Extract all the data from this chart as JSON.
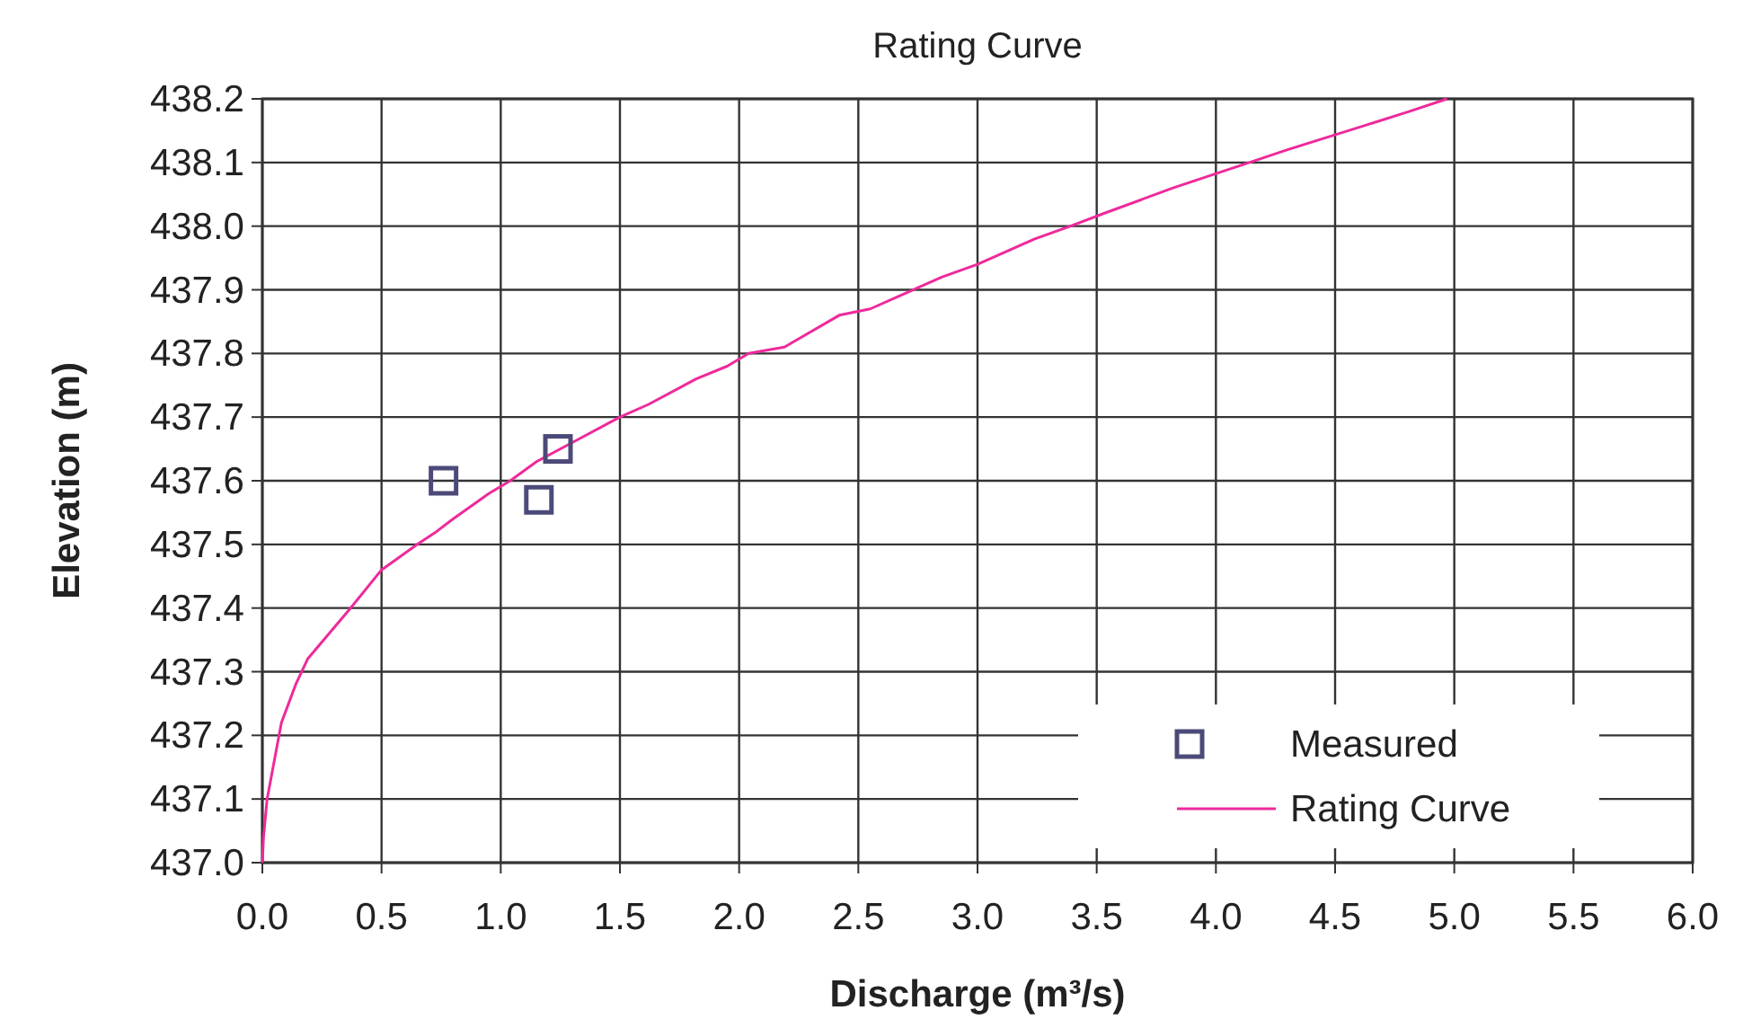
{
  "chart_data": {
    "type": "line",
    "title": "Rating Curve",
    "xlabel": "Discharge (m³/s)",
    "ylabel": "Elevation (m)",
    "xlim": [
      0,
      6
    ],
    "xticks": [
      {
        "value": 0,
        "label": "0.0"
      },
      {
        "value": 0.5,
        "label": "0.5"
      },
      {
        "value": 1,
        "label": "1.0"
      },
      {
        "value": 1.5,
        "label": "1.5"
      },
      {
        "value": 2,
        "label": "2.0"
      },
      {
        "value": 2.5,
        "label": "2.5"
      },
      {
        "value": 3,
        "label": "3.0"
      },
      {
        "value": 3.5,
        "label": "3.5"
      },
      {
        "value": 4,
        "label": "4.0"
      },
      {
        "value": 4.5,
        "label": "4.5"
      },
      {
        "value": 5,
        "label": "5.0"
      },
      {
        "value": 5.5,
        "label": "5.5"
      },
      {
        "value": 6,
        "label": "6.0"
      }
    ],
    "ylim": [
      437,
      438.2
    ],
    "yticks": [
      {
        "value": 437,
        "label": "437.0"
      },
      437.1,
      437.2,
      437.3,
      437.4,
      437.5,
      437.6,
      437.7,
      437.8,
      437.9,
      {
        "value": 438,
        "label": "438.0"
      },
      438.1,
      438.2
    ],
    "grid": true,
    "legend": "bottom right",
    "series": [
      {
        "name": "Measured",
        "type": "scatter",
        "marker": "square",
        "color": "#4b4a78",
        "x": [
          0.76,
          1.16,
          1.24
        ],
        "values": [
          437.6,
          437.57,
          437.65
        ]
      },
      {
        "name": "Rating Curve",
        "marker": "none",
        "line_style": "solid",
        "color": "#ee2a9b",
        "x": [
          0,
          0.005,
          0.02,
          0.05,
          0.08,
          0.14,
          0.19,
          0.28,
          0.37,
          0.5,
          0.65,
          0.73,
          0.8,
          0.95,
          1.04,
          1.15,
          1.3,
          1.5,
          1.62,
          1.82,
          1.95,
          2.04,
          2.19,
          2.42,
          2.55,
          2.67,
          2.85,
          3.0,
          3.24,
          3.39,
          3.53,
          3.82,
          4.14,
          4.3,
          4.64,
          4.81,
          4.97
        ],
        "values": [
          437.0,
          437.04,
          437.1,
          437.16,
          437.22,
          437.28,
          437.32,
          437.36,
          437.4,
          437.46,
          437.5,
          437.52,
          437.54,
          437.58,
          437.6,
          437.63,
          437.66,
          437.7,
          437.72,
          437.76,
          437.78,
          437.8,
          437.81,
          437.86,
          437.87,
          437.89,
          437.92,
          437.94,
          437.98,
          438.0,
          438.02,
          438.06,
          438.1,
          438.12,
          438.16,
          438.18,
          438.2
        ]
      }
    ]
  }
}
